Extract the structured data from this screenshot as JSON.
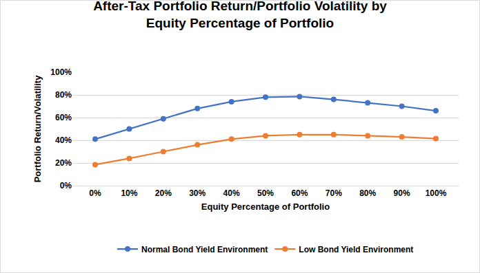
{
  "chart_data": {
    "type": "line",
    "title": "After-Tax Portfolio Return/Portfolio Volatility by Equity Percentage of Portfolio",
    "x_label": "Equity Percentage of Portfolio",
    "y_label": "Portfolio Return/Volatility",
    "categories": [
      "0%",
      "10%",
      "20%",
      "30%",
      "40%",
      "50%",
      "60%",
      "70%",
      "80%",
      "90%",
      "100%"
    ],
    "series": [
      {
        "name": "Normal Bond Yield Environment",
        "color": "#4472c4",
        "marker": "circle",
        "line_style": "solid",
        "values": [
          41,
          50,
          59,
          68,
          74,
          78,
          78.5,
          76,
          73,
          70,
          66
        ]
      },
      {
        "name": "Low Bond Yield Environment",
        "color": "#ed7d31",
        "marker": "circle",
        "line_style": "solid",
        "values": [
          18.5,
          24,
          30,
          36,
          41,
          44,
          45,
          45,
          44,
          43,
          41.5
        ]
      }
    ],
    "ylim": [
      0,
      100
    ],
    "yticks": [
      {
        "value": 0,
        "label": "0%"
      },
      {
        "value": 20,
        "label": "20%"
      },
      {
        "value": 40,
        "label": "40%"
      },
      {
        "value": 60,
        "label": "60%"
      },
      {
        "value": 80,
        "label": "80%"
      },
      {
        "value": 100,
        "label": "100%"
      }
    ],
    "grid": true,
    "legend": "bottom"
  }
}
